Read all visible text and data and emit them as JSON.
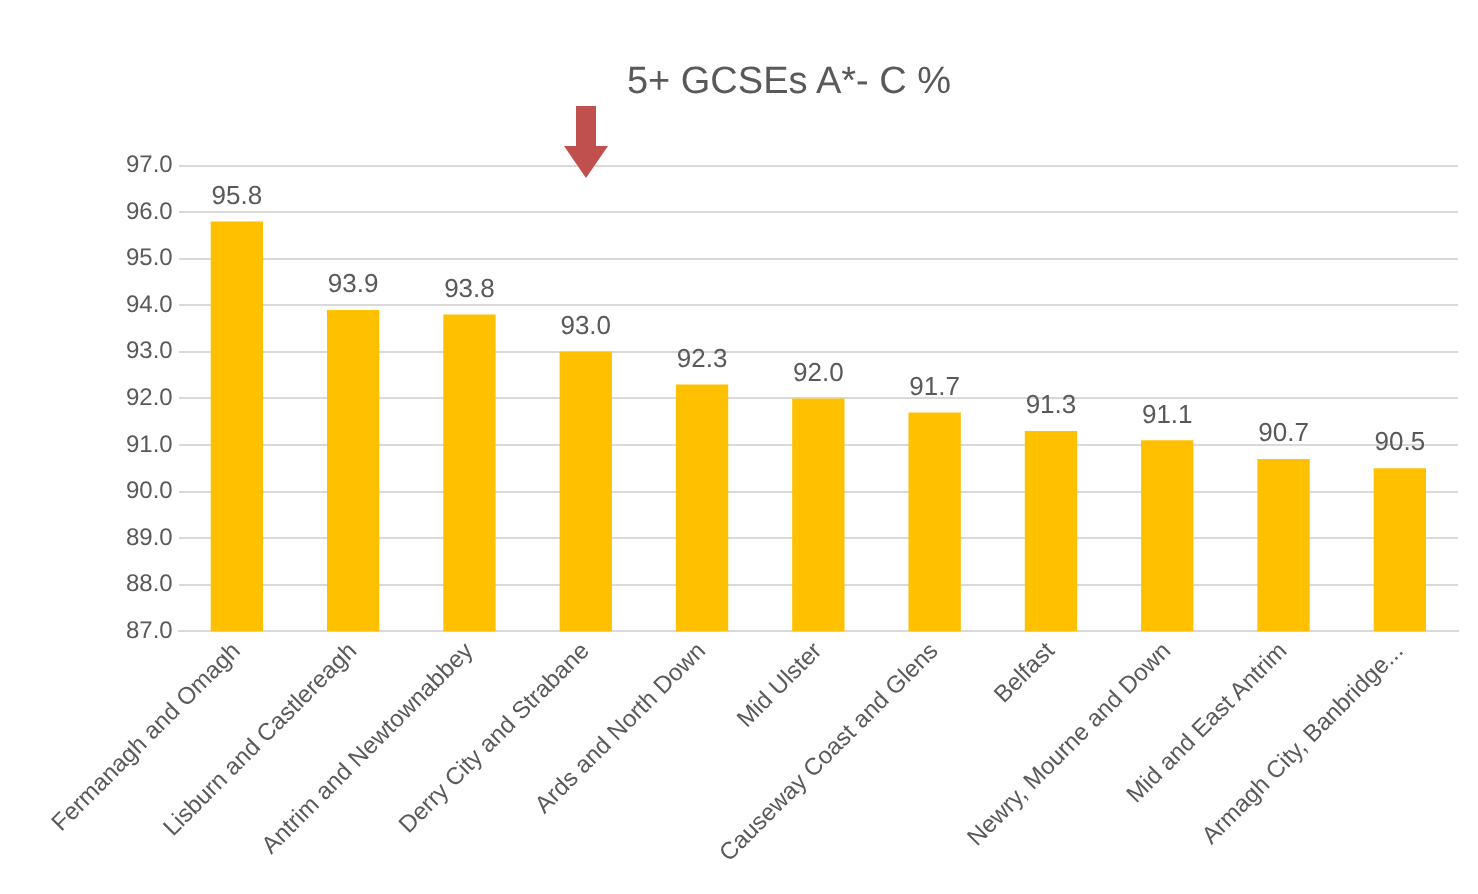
{
  "chart_data": {
    "type": "bar",
    "title": "5+ GCSEs A*- C %",
    "categories": [
      "Fermanagh and Omagh",
      "Lisburn and Castlereagh",
      "Antrim and Newtownabbey",
      "Derry City and Strabane",
      "Ards and North Down",
      "Mid Ulster",
      "Causeway Coast and Glens",
      "Belfast",
      "Newry, Mourne and Down",
      "Mid and East Antrim",
      "Armagh City, Banbridge..."
    ],
    "values": [
      95.8,
      93.9,
      93.8,
      93.0,
      92.3,
      92.0,
      91.7,
      91.3,
      91.1,
      90.7,
      90.5
    ],
    "value_labels": [
      "95.8",
      "93.9",
      "93.8",
      "93.0",
      "92.3",
      "92.0",
      "91.7",
      "91.3",
      "91.1",
      "90.7",
      "90.5"
    ],
    "color": "#ffc000",
    "ylim": [
      87,
      97
    ],
    "yticks": [
      {
        "value": 87,
        "label": "87.0"
      },
      {
        "value": 88,
        "label": "88.0"
      },
      {
        "value": 89,
        "label": "89.0"
      },
      {
        "value": 90,
        "label": "90.0"
      },
      {
        "value": 91,
        "label": "91.0"
      },
      {
        "value": 92,
        "label": "92.0"
      },
      {
        "value": 93,
        "label": "93.0"
      },
      {
        "value": 94,
        "label": "94.0"
      },
      {
        "value": 95,
        "label": "95.0"
      },
      {
        "value": 96,
        "label": "96.0"
      },
      {
        "value": 97,
        "label": "97.0"
      }
    ],
    "grid": "y",
    "legend": false
  }
}
